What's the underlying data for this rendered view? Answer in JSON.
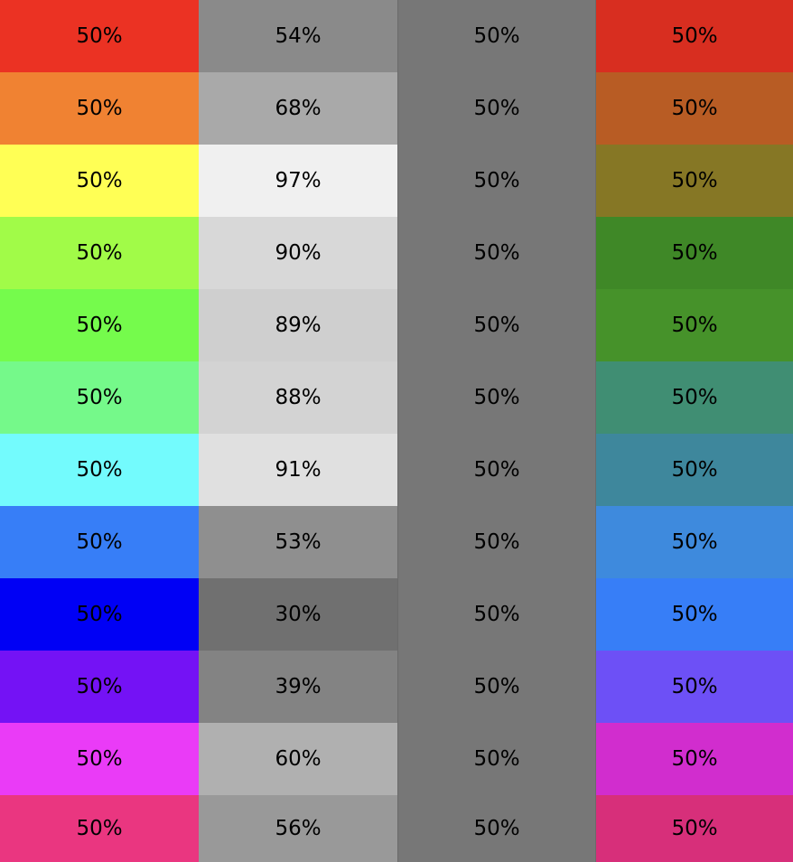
{
  "rows": [
    {
      "cells": [
        {
          "label": "50%",
          "color": "#EB3223"
        },
        {
          "label": "54%",
          "color": "#8A8A8A"
        },
        {
          "label": "50%",
          "color": "#777777"
        },
        {
          "label": "50%",
          "color": "#D82E20"
        }
      ]
    },
    {
      "cells": [
        {
          "label": "50%",
          "color": "#F08232"
        },
        {
          "label": "68%",
          "color": "#A9A9A9"
        },
        {
          "label": "50%",
          "color": "#777777"
        },
        {
          "label": "50%",
          "color": "#B85C24"
        }
      ]
    },
    {
      "cells": [
        {
          "label": "50%",
          "color": "#FFFF55"
        },
        {
          "label": "97%",
          "color": "#F0F0F0"
        },
        {
          "label": "50%",
          "color": "#777777"
        },
        {
          "label": "50%",
          "color": "#867725"
        }
      ]
    },
    {
      "cells": [
        {
          "label": "50%",
          "color": "#A1FB48"
        },
        {
          "label": "90%",
          "color": "#D8D8D8"
        },
        {
          "label": "50%",
          "color": "#777777"
        },
        {
          "label": "50%",
          "color": "#3F8827"
        }
      ]
    },
    {
      "cells": [
        {
          "label": "50%",
          "color": "#75FB4C"
        },
        {
          "label": "89%",
          "color": "#CFCFCF"
        },
        {
          "label": "50%",
          "color": "#777777"
        },
        {
          "label": "50%",
          "color": "#46922A"
        }
      ]
    },
    {
      "cells": [
        {
          "label": "50%",
          "color": "#75F98A"
        },
        {
          "label": "88%",
          "color": "#D3D3D3"
        },
        {
          "label": "50%",
          "color": "#777777"
        },
        {
          "label": "50%",
          "color": "#408E73"
        }
      ]
    },
    {
      "cells": [
        {
          "label": "50%",
          "color": "#73FBFD"
        },
        {
          "label": "91%",
          "color": "#E0E0E0"
        },
        {
          "label": "50%",
          "color": "#777777"
        },
        {
          "label": "50%",
          "color": "#3E879C"
        }
      ]
    },
    {
      "cells": [
        {
          "label": "50%",
          "color": "#377EF7"
        },
        {
          "label": "53%",
          "color": "#8F8F8F"
        },
        {
          "label": "50%",
          "color": "#777777"
        },
        {
          "label": "50%",
          "color": "#3E8ADD"
        }
      ]
    },
    {
      "cells": [
        {
          "label": "50%",
          "color": "#0000F5"
        },
        {
          "label": "30%",
          "color": "#707070"
        },
        {
          "label": "50%",
          "color": "#777777"
        },
        {
          "label": "50%",
          "color": "#377EF7"
        }
      ]
    },
    {
      "cells": [
        {
          "label": "50%",
          "color": "#7412F5"
        },
        {
          "label": "39%",
          "color": "#838383"
        },
        {
          "label": "50%",
          "color": "#777777"
        },
        {
          "label": "50%",
          "color": "#6D50F6"
        }
      ]
    },
    {
      "cells": [
        {
          "label": "50%",
          "color": "#EA3BF7"
        },
        {
          "label": "60%",
          "color": "#B0B0B0"
        },
        {
          "label": "50%",
          "color": "#777777"
        },
        {
          "label": "50%",
          "color": "#D12DCE"
        }
      ]
    },
    {
      "cells": [
        {
          "label": "50%",
          "color": "#EA3680"
        },
        {
          "label": "56%",
          "color": "#999999"
        },
        {
          "label": "50%",
          "color": "#777777"
        },
        {
          "label": "50%",
          "color": "#D72F7A"
        }
      ]
    }
  ]
}
